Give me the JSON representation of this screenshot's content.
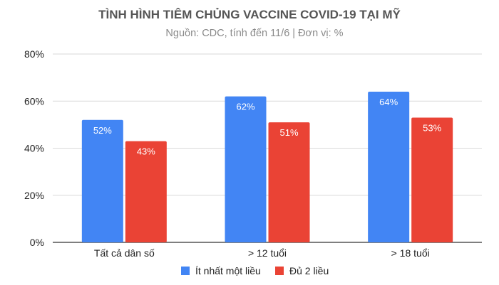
{
  "chart_data": {
    "type": "bar",
    "title": "TÌNH HÌNH TIÊM CHỦNG VACCINE COVID-19 TẠI MỸ",
    "subtitle": "Nguồn: CDC, tính đến 11/6 | Đơn vị: %",
    "categories": [
      "Tất cả dân số",
      "> 12 tuổi",
      "> 18 tuổi"
    ],
    "series": [
      {
        "name": "Ít nhất một liều",
        "values": [
          52,
          62,
          64
        ],
        "color": "#4285f4",
        "labels": [
          "52%",
          "62%",
          "64%"
        ]
      },
      {
        "name": "Đủ 2 liều",
        "values": [
          43,
          51,
          53
        ],
        "color": "#ea4335",
        "labels": [
          "43%",
          "51%",
          "53%"
        ]
      }
    ],
    "ylim": [
      0,
      80
    ],
    "yticks": [
      0,
      20,
      40,
      60,
      80
    ],
    "ytick_labels": [
      "0%",
      "20%",
      "40%",
      "60%",
      "80%"
    ],
    "grid": true,
    "legend_position": "bottom"
  }
}
